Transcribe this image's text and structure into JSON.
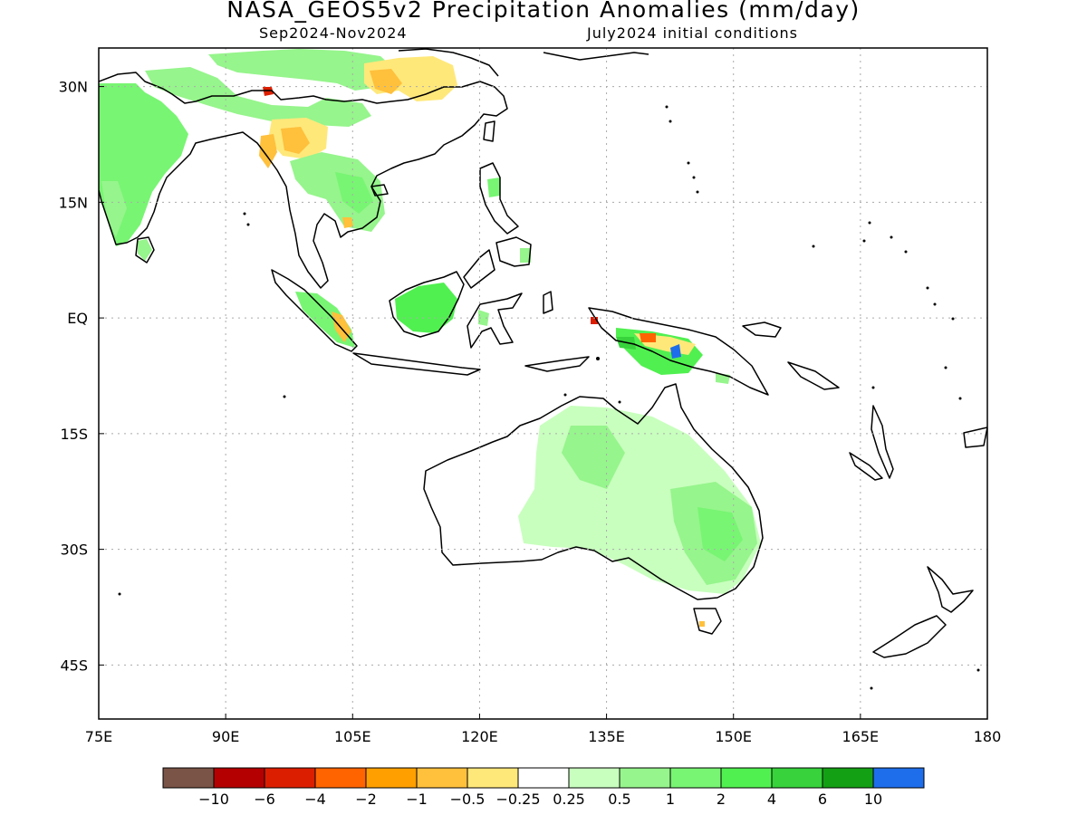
{
  "title": "NASA_GEOS5v2 Precipitation Anomalies (mm/day)",
  "subtitle_left": "Sep2024-Nov2024",
  "subtitle_right": "July2024 initial conditions",
  "map": {
    "lon_range": [
      75,
      180
    ],
    "lat_range": [
      -52,
      35
    ],
    "lon_ticks": [
      {
        "value": 75,
        "label": "75E"
      },
      {
        "value": 90,
        "label": "90E"
      },
      {
        "value": 105,
        "label": "105E"
      },
      {
        "value": 120,
        "label": "120E"
      },
      {
        "value": 135,
        "label": "135E"
      },
      {
        "value": 150,
        "label": "150E"
      },
      {
        "value": 165,
        "label": "165E"
      },
      {
        "value": 180,
        "label": "180"
      }
    ],
    "lat_ticks": [
      {
        "value": 30,
        "label": "30N"
      },
      {
        "value": 15,
        "label": "15N"
      },
      {
        "value": 0,
        "label": "EQ"
      },
      {
        "value": -15,
        "label": "15S"
      },
      {
        "value": -30,
        "label": "30S"
      },
      {
        "value": -45,
        "label": "45S"
      }
    ],
    "grid": "dotted"
  },
  "colorbar": {
    "colors": [
      "#7a5446",
      "#b40000",
      "#dc1e00",
      "#ff6400",
      "#ffa000",
      "#ffc03c",
      "#ffe87a",
      "#ffffff",
      "#c8ffbe",
      "#96f58c",
      "#78f573",
      "#50f050",
      "#37d23c",
      "#14a014",
      "#1e6eeb"
    ],
    "labels": [
      "-10",
      "-6",
      "-4",
      "-2",
      "-1",
      "-0.5",
      "-0.25",
      "0.25",
      "0.5",
      "1",
      "2",
      "4",
      "6",
      "10"
    ]
  },
  "anomaly_colors": {
    "light_green": "#c8ffbe",
    "green": "#96f58c",
    "mid_green": "#78f573",
    "bright_green": "#50f050",
    "yellow": "#ffe87a",
    "light_orange": "#ffc03c",
    "orange": "#ffa000",
    "dark_orange": "#ff6400",
    "red": "#dc1e00",
    "blue": "#1e6eeb"
  }
}
